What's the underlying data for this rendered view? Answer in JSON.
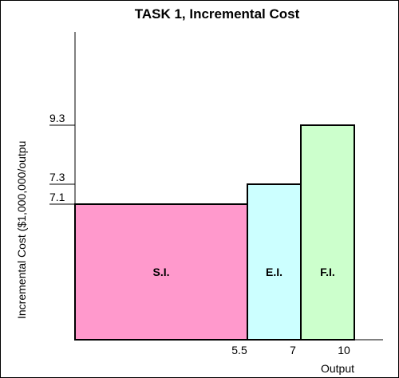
{
  "chart_data": {
    "type": "bar",
    "title": "TASK 1, Incremental Cost",
    "xlabel": "Output",
    "ylabel": "Incremental Cost ($1,000,000/outpu",
    "bars": [
      {
        "label": "S.I.",
        "x_start": 0,
        "x_end": 5.5,
        "value": 7.1,
        "color": "#FF99CC"
      },
      {
        "label": "E.I.",
        "x_start": 5.5,
        "x_end": 7,
        "value": 7.3,
        "color": "#CCFFFF"
      },
      {
        "label": "F.I.",
        "x_start": 7,
        "x_end": 10,
        "value": 9.3,
        "color": "#CCFFCC"
      }
    ],
    "x_ticks": [
      {
        "value": 5.5,
        "label": "5.5"
      },
      {
        "value": 7,
        "label": "7"
      },
      {
        "value": 10,
        "label": "10"
      }
    ],
    "y_ticks": [
      {
        "value": 9.3,
        "label": "9.3"
      },
      {
        "value": 7.3,
        "label": "7.3"
      },
      {
        "value": 7.1,
        "label": "7.1"
      }
    ],
    "grid": false,
    "legend": "none"
  }
}
